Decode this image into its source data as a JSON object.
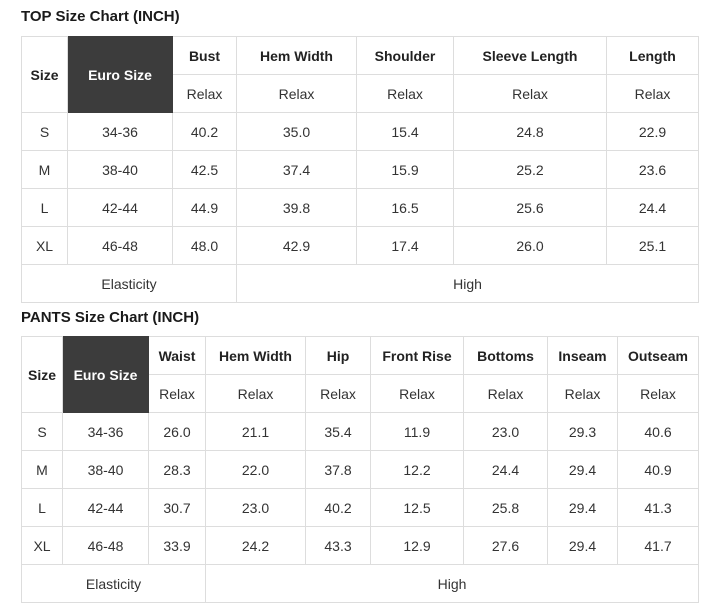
{
  "colors": {
    "dark_cell_bg": "#3c3c3c",
    "dark_cell_text": "#ffffff",
    "table_border": "#dddddd",
    "body_text": "#333333",
    "header_text": "#222222",
    "page_bg": "#ffffff"
  },
  "chart_data": [
    {
      "type": "table",
      "title": "TOP Size Chart (INCH)",
      "fixed_columns": [
        "Size",
        "Euro Size"
      ],
      "measure_columns": [
        "Bust",
        "Hem Width",
        "Shoulder",
        "Sleeve Length",
        "Length"
      ],
      "fit_label": "Relax",
      "rows": [
        {
          "size": "S",
          "euro_size": "34-36",
          "values": [
            "40.2",
            "35.0",
            "15.4",
            "24.8",
            "22.9"
          ]
        },
        {
          "size": "M",
          "euro_size": "38-40",
          "values": [
            "42.5",
            "37.4",
            "15.9",
            "25.2",
            "23.6"
          ]
        },
        {
          "size": "L",
          "euro_size": "42-44",
          "values": [
            "44.9",
            "39.8",
            "16.5",
            "25.6",
            "24.4"
          ]
        },
        {
          "size": "XL",
          "euro_size": "46-48",
          "values": [
            "48.0",
            "42.9",
            "17.4",
            "26.0",
            "25.1"
          ]
        }
      ],
      "footer": {
        "label": "Elasticity",
        "value": "High"
      }
    },
    {
      "type": "table",
      "title": "PANTS Size Chart (INCH)",
      "fixed_columns": [
        "Size",
        "Euro Size"
      ],
      "measure_columns": [
        "Waist",
        "Hem Width",
        "Hip",
        "Front Rise",
        "Bottoms",
        "Inseam",
        "Outseam"
      ],
      "fit_label": "Relax",
      "rows": [
        {
          "size": "S",
          "euro_size": "34-36",
          "values": [
            "26.0",
            "21.1",
            "35.4",
            "11.9",
            "23.0",
            "29.3",
            "40.6"
          ]
        },
        {
          "size": "M",
          "euro_size": "38-40",
          "values": [
            "28.3",
            "22.0",
            "37.8",
            "12.2",
            "24.4",
            "29.4",
            "40.9"
          ]
        },
        {
          "size": "L",
          "euro_size": "42-44",
          "values": [
            "30.7",
            "23.0",
            "40.2",
            "12.5",
            "25.8",
            "29.4",
            "41.3"
          ]
        },
        {
          "size": "XL",
          "euro_size": "46-48",
          "values": [
            "33.9",
            "24.2",
            "43.3",
            "12.9",
            "27.6",
            "29.4",
            "41.7"
          ]
        }
      ],
      "footer": {
        "label": "Elasticity",
        "value": "High"
      }
    }
  ]
}
